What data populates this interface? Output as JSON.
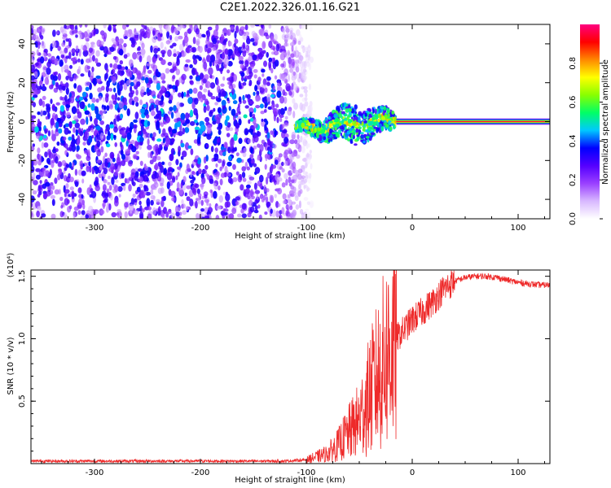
{
  "title": "C2E1.2022.326.01.16.G21",
  "chart_data": [
    {
      "type": "heatmap",
      "xlabel": "Height of straight line (km)",
      "ylabel": "Frequency (Hz)",
      "xlim": [
        -360,
        130
      ],
      "ylim": [
        -50,
        50
      ],
      "x_ticks": [
        -300,
        -200,
        -100,
        0,
        100
      ],
      "y_ticks": [
        -40,
        -20,
        0,
        20,
        40
      ],
      "colorbar": {
        "label": "Normalized spectral amplitude",
        "range": [
          0.0,
          1.0
        ],
        "ticks": [
          0.0,
          0.2,
          0.4,
          0.6,
          0.8
        ],
        "tick_labels": [
          "0.0",
          "0.2",
          "0.4",
          "0.6",
          "0.8"
        ],
        "colors": [
          "#ffffff",
          "#d8b8ff",
          "#9a40ff",
          "#5500ff",
          "#0000ff",
          "#00c8ff",
          "#00ff66",
          "#88ff00",
          "#ffff00",
          "#ff8800",
          "#ff0000",
          "#ff0080"
        ]
      },
      "features": {
        "noise_region_x": [
          -360,
          -95
        ],
        "noise_center_freq": 0,
        "transition_x": [
          -110,
          -15
        ],
        "carrier_x": [
          -15,
          130
        ],
        "carrier_freq": 0,
        "carrier_amplitude": 0.95
      },
      "grid": false
    },
    {
      "type": "line",
      "xlabel": "Height of straight line (km)",
      "ylabel": "SNR (10 * v/v)",
      "y_scale_note": "(x10⁴)",
      "xlim": [
        -360,
        130
      ],
      "ylim": [
        0,
        1.55
      ],
      "x_ticks": [
        -300,
        -200,
        -100,
        0,
        100
      ],
      "y_ticks": [
        0.5,
        1.0,
        1.5
      ],
      "y_tick_labels": [
        "0.5",
        "1.0",
        "1.5"
      ],
      "series": [
        {
          "color": "#ee2a2a",
          "x": [
            -360,
            -300,
            -200,
            -120,
            -100,
            -80,
            -70,
            -60,
            -50,
            -40,
            -30,
            -20,
            -10,
            0,
            10,
            20,
            30,
            40,
            50,
            60,
            70,
            80,
            90,
            100,
            110,
            120,
            130
          ],
          "y": [
            0.02,
            0.02,
            0.02,
            0.02,
            0.03,
            0.08,
            0.15,
            0.25,
            0.35,
            0.55,
            0.75,
            0.95,
            1.05,
            1.15,
            1.22,
            1.3,
            1.4,
            1.46,
            1.49,
            1.5,
            1.5,
            1.49,
            1.47,
            1.45,
            1.44,
            1.43,
            1.43
          ]
        }
      ],
      "grid": false
    }
  ]
}
